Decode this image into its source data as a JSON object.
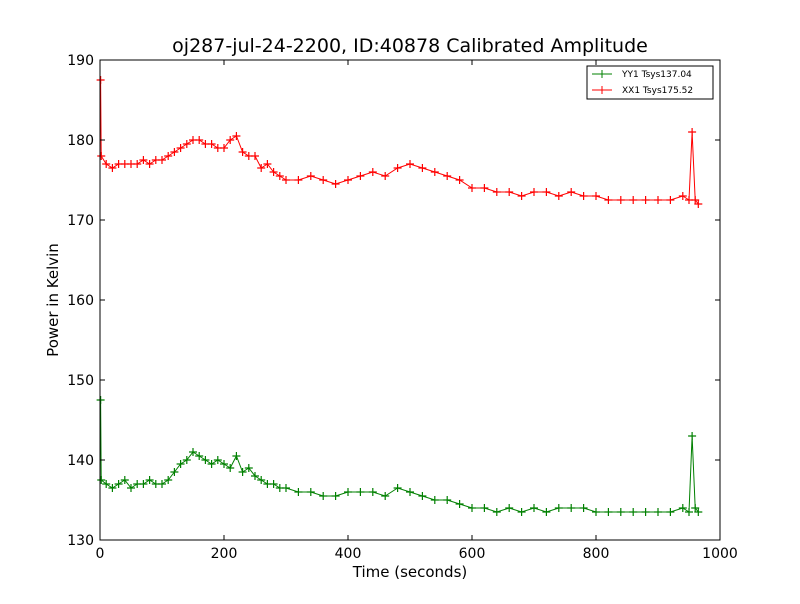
{
  "chart_data": {
    "type": "line",
    "title": "oj287-jul-24-2200, ID:40878 Calibrated Amplitude",
    "xlabel": "Time (seconds)",
    "ylabel": "Power in Kelvin",
    "xlim": [
      0,
      1000
    ],
    "ylim": [
      130,
      190
    ],
    "xticks": [
      "0",
      "200",
      "400",
      "600",
      "800",
      "1000"
    ],
    "yticks": [
      "130",
      "140",
      "150",
      "160",
      "170",
      "180",
      "190"
    ],
    "grid": false,
    "legend_position": "top-right",
    "marker": "plus",
    "series": [
      {
        "name": "YY1 Tsys137.04",
        "color": "#008000",
        "x": [
          1,
          2,
          10,
          20,
          30,
          40,
          50,
          60,
          70,
          80,
          90,
          100,
          110,
          120,
          130,
          140,
          150,
          160,
          170,
          180,
          190,
          200,
          210,
          220,
          230,
          240,
          250,
          260,
          270,
          280,
          290,
          300,
          320,
          340,
          360,
          380,
          400,
          420,
          440,
          460,
          480,
          500,
          520,
          540,
          560,
          580,
          600,
          620,
          640,
          660,
          680,
          700,
          720,
          740,
          760,
          780,
          800,
          820,
          840,
          860,
          880,
          900,
          920,
          940,
          950,
          955,
          960,
          965
        ],
        "y": [
          147.5,
          137.5,
          137,
          136.5,
          137,
          137.5,
          136.5,
          137,
          137,
          137.5,
          137,
          137,
          137.5,
          138.5,
          139.5,
          140,
          141,
          140.5,
          140,
          139.5,
          140,
          139.5,
          139,
          140.5,
          138.5,
          139,
          138,
          137.5,
          137,
          137,
          136.5,
          136.5,
          136,
          136,
          135.5,
          135.5,
          136,
          136,
          136,
          135.5,
          136.5,
          136,
          135.5,
          135,
          135,
          134.5,
          134,
          134,
          133.5,
          134,
          133.5,
          134,
          133.5,
          134,
          134,
          134,
          133.5,
          133.5,
          133.5,
          133.5,
          133.5,
          133.5,
          133.5,
          134,
          133.5,
          143,
          134,
          133.5
        ]
      },
      {
        "name": "XX1 Tsys175.52",
        "color": "#ff0000",
        "x": [
          1,
          2,
          10,
          20,
          30,
          40,
          50,
          60,
          70,
          80,
          90,
          100,
          110,
          120,
          130,
          140,
          150,
          160,
          170,
          180,
          190,
          200,
          210,
          220,
          230,
          240,
          250,
          260,
          270,
          280,
          290,
          300,
          320,
          340,
          360,
          380,
          400,
          420,
          440,
          460,
          480,
          500,
          520,
          540,
          560,
          580,
          600,
          620,
          640,
          660,
          680,
          700,
          720,
          740,
          760,
          780,
          800,
          820,
          840,
          860,
          880,
          900,
          920,
          940,
          950,
          955,
          960,
          965
        ],
        "y": [
          187.5,
          178,
          177,
          176.5,
          177,
          177,
          177,
          177,
          177.5,
          177,
          177.5,
          177.5,
          178,
          178.5,
          179,
          179.5,
          180,
          180,
          179.5,
          179.5,
          179,
          179,
          180,
          180.5,
          178.5,
          178,
          178,
          176.5,
          177,
          176,
          175.5,
          175,
          175,
          175.5,
          175,
          174.5,
          175,
          175.5,
          176,
          175.5,
          176.5,
          177,
          176.5,
          176,
          175.5,
          175,
          174,
          174,
          173.5,
          173.5,
          173,
          173.5,
          173.5,
          173,
          173.5,
          173,
          173,
          172.5,
          172.5,
          172.5,
          172.5,
          172.5,
          172.5,
          173,
          172.5,
          181,
          172.5,
          172
        ]
      }
    ]
  }
}
